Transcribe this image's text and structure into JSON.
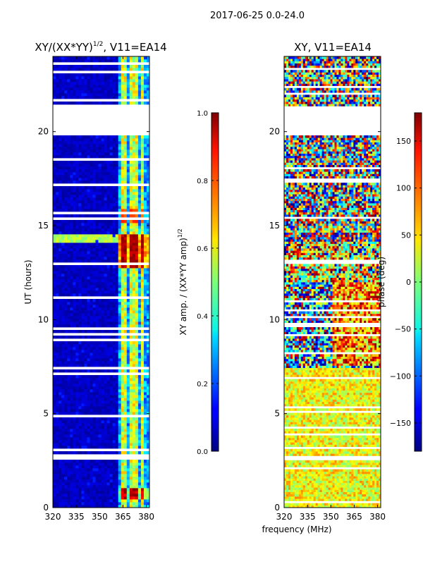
{
  "figure_title": "2017-06-25 0.0-24.0",
  "chart_data": [
    {
      "type": "heatmap",
      "title": "XY/(XX*YY)",
      "title_exponent": "1/2",
      "title_suffix": ", V11=EA14",
      "xlabel": "",
      "ylabel": "UT (hours)",
      "xlim": [
        320,
        382
      ],
      "ylim": [
        0,
        24
      ],
      "x_ticks": [
        320,
        335,
        350,
        365,
        380
      ],
      "y_ticks": [
        0,
        5,
        10,
        15,
        20
      ],
      "colorbar": {
        "label": "XY amp. / (XX*YY amp)",
        "label_exponent": "1/2",
        "range": [
          0.0,
          1.0
        ],
        "ticks": [
          "0.0",
          "0.2",
          "0.4",
          "0.6",
          "0.8",
          "1.0"
        ],
        "tick_values": [
          0.0,
          0.2,
          0.4,
          0.6,
          0.8,
          1.0
        ]
      },
      "missing_data_hours": [
        [
          19.8,
          21.4
        ],
        [
          2.5,
          2.8
        ]
      ],
      "bright_channels_mhz": [
        364,
        367,
        371,
        374,
        378
      ]
    },
    {
      "type": "heatmap",
      "title": "XY, V11=EA14",
      "xlabel": "frequency (MHz)",
      "ylabel": "",
      "xlim": [
        320,
        382
      ],
      "ylim": [
        0,
        24
      ],
      "x_ticks": [
        320,
        335,
        350,
        365,
        380
      ],
      "y_ticks": [
        0,
        5,
        10,
        15,
        20
      ],
      "colorbar": {
        "label": "phase (deg)",
        "range": [
          -180,
          180
        ],
        "ticks": [
          "150",
          "100",
          "50",
          "0",
          "−50",
          "−100",
          "−150"
        ],
        "tick_values": [
          150,
          100,
          50,
          0,
          -50,
          -100,
          -150
        ]
      },
      "missing_data_hours": [
        [
          19.8,
          21.4
        ],
        [
          2.5,
          2.8
        ]
      ]
    }
  ]
}
